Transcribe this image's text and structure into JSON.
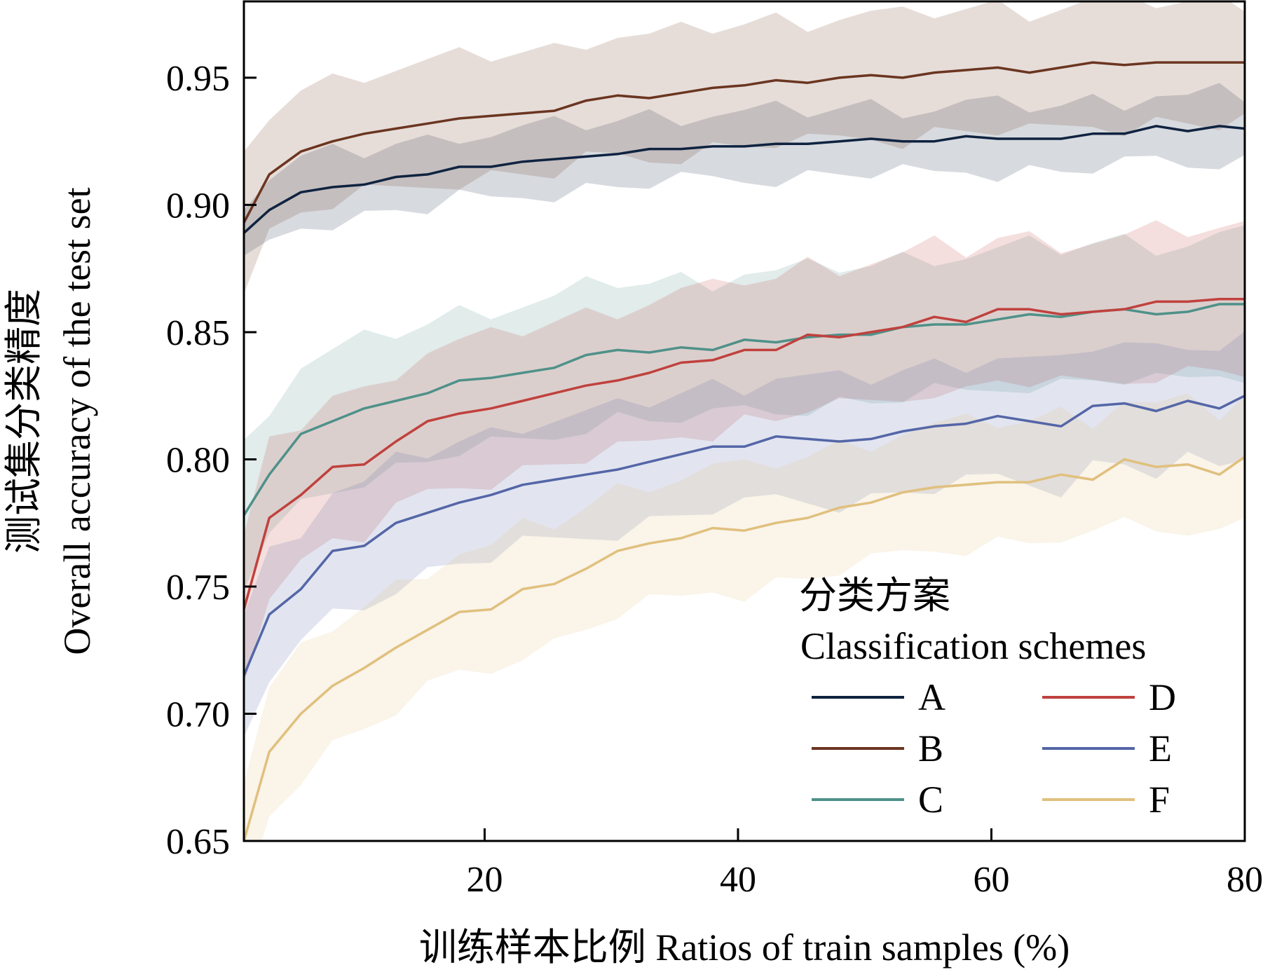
{
  "chart_data": {
    "type": "line",
    "title": "",
    "xlabel": "训练样本比例 Ratios of train samples (%)",
    "ylabel_line1": "测试集分类精度",
    "ylabel_line2": "Overall accuracy of the test set",
    "xlim": [
      1,
      80
    ],
    "ylim": [
      0.65,
      0.98
    ],
    "xticks": [
      20,
      40,
      60,
      80
    ],
    "yticks": [
      0.65,
      0.7,
      0.75,
      0.8,
      0.85,
      0.9,
      0.95
    ],
    "ytick_labels": [
      "0.65",
      "0.70",
      "0.75",
      "0.80",
      "0.85",
      "0.90",
      "0.95"
    ],
    "grid": false,
    "legend_placement": "bottom-right",
    "legend_title_line1": "分类方案",
    "legend_title_line2": "Classification schemes",
    "x": [
      1,
      3,
      5.5,
      8,
      10.5,
      13,
      15.5,
      18,
      20.5,
      23,
      25.5,
      28,
      30.5,
      33,
      35.5,
      38,
      40.5,
      43,
      45.5,
      48,
      50.5,
      53,
      55.5,
      58,
      60.5,
      63,
      65.5,
      68,
      70.5,
      73,
      75.5,
      78,
      80
    ],
    "series": [
      {
        "name": "A",
        "color": "#0f2340",
        "values": [
          0.889,
          0.898,
          0.905,
          0.907,
          0.908,
          0.911,
          0.912,
          0.915,
          0.915,
          0.917,
          0.918,
          0.919,
          0.92,
          0.922,
          0.922,
          0.923,
          0.923,
          0.924,
          0.924,
          0.925,
          0.926,
          0.925,
          0.925,
          0.927,
          0.926,
          0.926,
          0.926,
          0.928,
          0.928,
          0.931,
          0.929,
          0.931,
          0.93
        ],
        "band": 0.013
      },
      {
        "name": "B",
        "color": "#6b3520",
        "values": [
          0.893,
          0.912,
          0.921,
          0.925,
          0.928,
          0.93,
          0.932,
          0.934,
          0.935,
          0.936,
          0.937,
          0.941,
          0.943,
          0.942,
          0.944,
          0.946,
          0.947,
          0.949,
          0.948,
          0.95,
          0.951,
          0.95,
          0.952,
          0.953,
          0.954,
          0.952,
          0.954,
          0.956,
          0.955,
          0.956,
          0.956,
          0.956,
          0.956
        ],
        "band": 0.024
      },
      {
        "name": "C",
        "color": "#4f9189",
        "values": [
          0.778,
          0.794,
          0.81,
          0.815,
          0.82,
          0.823,
          0.826,
          0.831,
          0.832,
          0.834,
          0.836,
          0.841,
          0.843,
          0.842,
          0.844,
          0.843,
          0.847,
          0.846,
          0.848,
          0.849,
          0.849,
          0.852,
          0.853,
          0.853,
          0.855,
          0.857,
          0.856,
          0.858,
          0.859,
          0.857,
          0.858,
          0.861,
          0.861
        ],
        "band": 0.027
      },
      {
        "name": "D",
        "color": "#c0413d",
        "values": [
          0.741,
          0.777,
          0.786,
          0.797,
          0.798,
          0.807,
          0.815,
          0.818,
          0.82,
          0.823,
          0.826,
          0.829,
          0.831,
          0.834,
          0.838,
          0.839,
          0.843,
          0.843,
          0.849,
          0.848,
          0.85,
          0.852,
          0.856,
          0.854,
          0.859,
          0.859,
          0.857,
          0.858,
          0.859,
          0.862,
          0.862,
          0.863,
          0.863
        ],
        "band": 0.028
      },
      {
        "name": "E",
        "color": "#5466a7",
        "values": [
          0.715,
          0.739,
          0.749,
          0.764,
          0.766,
          0.775,
          0.779,
          0.783,
          0.786,
          0.79,
          0.792,
          0.794,
          0.796,
          0.799,
          0.802,
          0.805,
          0.805,
          0.809,
          0.808,
          0.807,
          0.808,
          0.811,
          0.813,
          0.814,
          0.817,
          0.815,
          0.813,
          0.821,
          0.822,
          0.819,
          0.823,
          0.82,
          0.825
        ],
        "band": 0.024
      },
      {
        "name": "F",
        "color": "#e0c07e",
        "values": [
          0.65,
          0.685,
          0.7,
          0.711,
          0.718,
          0.726,
          0.733,
          0.74,
          0.741,
          0.749,
          0.751,
          0.757,
          0.764,
          0.767,
          0.769,
          0.773,
          0.772,
          0.775,
          0.777,
          0.781,
          0.783,
          0.787,
          0.789,
          0.79,
          0.791,
          0.791,
          0.794,
          0.792,
          0.8,
          0.797,
          0.798,
          0.794,
          0.801
        ],
        "band": 0.024
      }
    ]
  }
}
